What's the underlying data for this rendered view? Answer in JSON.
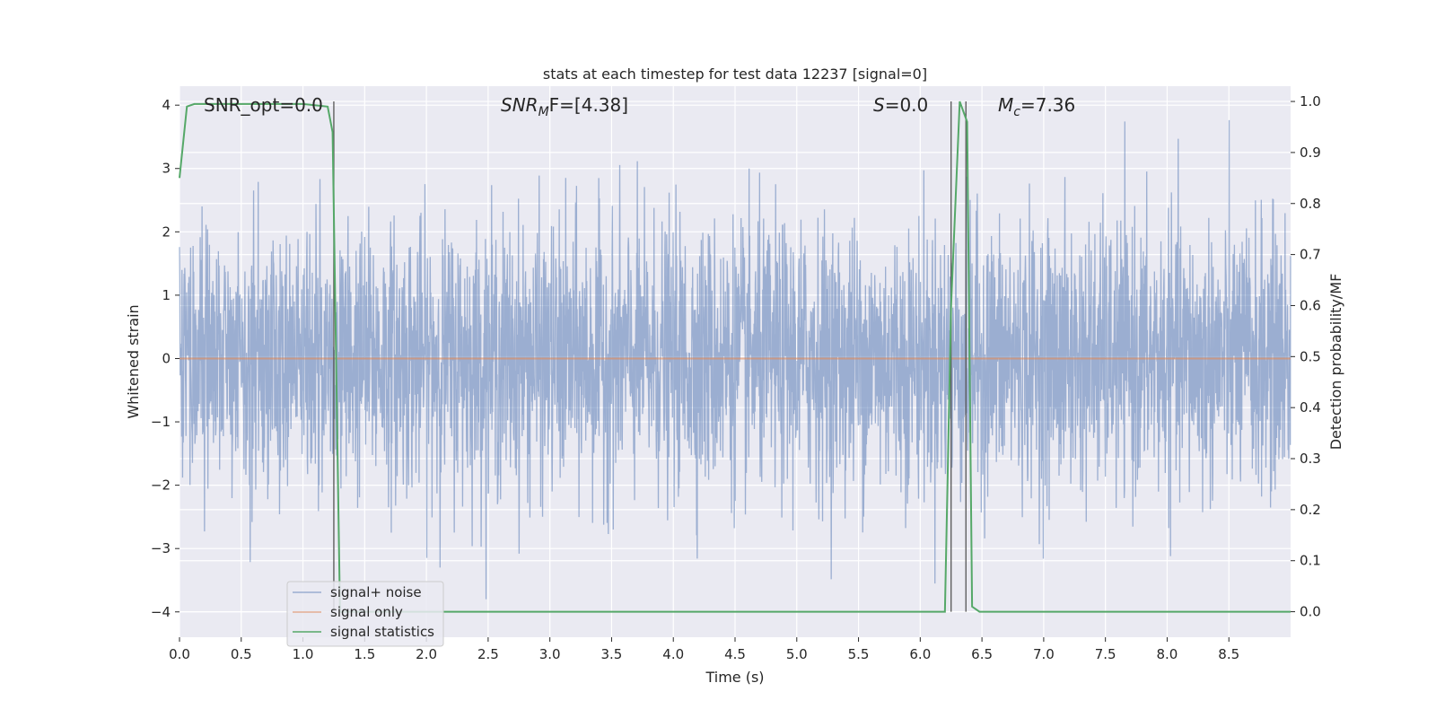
{
  "chart_data": {
    "type": "line",
    "title": "stats at each timestep for test data 12237 [signal=0]",
    "xlabel": "Time (s)",
    "ylabel": "Whitened strain",
    "y2label": "Detection probability/MF",
    "xlim": [
      0,
      9.0
    ],
    "ylim": [
      -4.4,
      4.3
    ],
    "y2lim": [
      -0.05,
      1.03
    ],
    "x_ticks": [
      0.0,
      0.5,
      1.0,
      1.5,
      2.0,
      2.5,
      3.0,
      3.5,
      4.0,
      4.5,
      5.0,
      5.5,
      6.0,
      6.5,
      7.0,
      7.5,
      8.0,
      8.5
    ],
    "x_tick_labels": [
      "0.0",
      "0.5",
      "1.0",
      "1.5",
      "2.0",
      "2.5",
      "3.0",
      "3.5",
      "4.0",
      "4.5",
      "5.0",
      "5.5",
      "6.0",
      "6.5",
      "7.0",
      "7.5",
      "8.0",
      "8.5"
    ],
    "y_ticks": [
      -4,
      -3,
      -2,
      -1,
      0,
      1,
      2,
      3,
      4
    ],
    "y_tick_labels": [
      "−4",
      "−3",
      "−2",
      "−1",
      "0",
      "1",
      "2",
      "3",
      "4"
    ],
    "y2_ticks": [
      0.0,
      0.1,
      0.2,
      0.3,
      0.4,
      0.5,
      0.6,
      0.7,
      0.8,
      0.9,
      1.0
    ],
    "y2_tick_labels": [
      "0.0",
      "0.1",
      "0.2",
      "0.3",
      "0.4",
      "0.5",
      "0.6",
      "0.7",
      "0.8",
      "0.9",
      "1.0"
    ],
    "grid": true,
    "legend_placement": "lower-left",
    "annotations": {
      "snr_opt": "SNR_opt=0.0",
      "snr_mf_main": "SNR",
      "snr_mf_sub": "M",
      "snr_mf_rest": "F=[4.38]",
      "s_main": "S",
      "s_rest": "=0.0",
      "mc_main": "M",
      "mc_sub": "c",
      "mc_rest": "=7.36"
    },
    "vertical_markers": [
      1.25,
      6.25,
      6.37
    ],
    "series": [
      {
        "name": "signal+ noise",
        "color": "#4c72b0",
        "description_type": "noise",
        "typical_range": [
          -2.3,
          2.3
        ],
        "extreme_range": [
          -3.8,
          4.0
        ]
      },
      {
        "name": "signal only",
        "color": "#dd8452",
        "x": [
          0,
          9.0
        ],
        "y": [
          0,
          0
        ]
      },
      {
        "name": "signal statistics",
        "color": "#55a868",
        "axis": "right",
        "x": [
          0.0,
          0.06,
          0.12,
          0.2,
          0.5,
          1.0,
          1.2,
          1.24,
          1.3,
          1.4,
          6.2,
          6.25,
          6.32,
          6.38,
          6.42,
          6.48,
          7.7,
          7.8,
          9.0
        ],
        "y": [
          0.85,
          0.99,
          0.995,
          0.995,
          0.995,
          0.995,
          0.99,
          0.94,
          0.0,
          0.0,
          0.0,
          0.6,
          1.0,
          0.96,
          0.01,
          0.0,
          0.0,
          0.0,
          0.0
        ]
      }
    ]
  }
}
